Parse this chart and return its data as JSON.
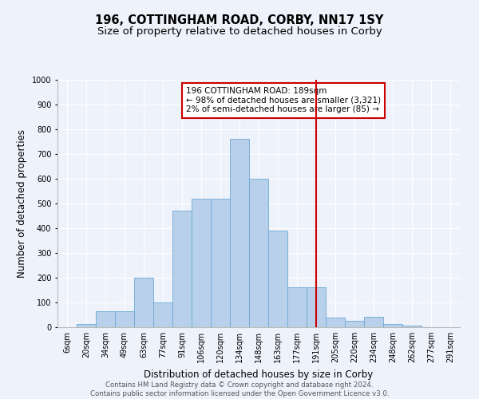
{
  "title": "196, COTTINGHAM ROAD, CORBY, NN17 1SY",
  "subtitle": "Size of property relative to detached houses in Corby",
  "xlabel": "Distribution of detached houses by size in Corby",
  "ylabel": "Number of detached properties",
  "categories": [
    "6sqm",
    "20sqm",
    "34sqm",
    "49sqm",
    "63sqm",
    "77sqm",
    "91sqm",
    "106sqm",
    "120sqm",
    "134sqm",
    "148sqm",
    "163sqm",
    "177sqm",
    "191sqm",
    "205sqm",
    "220sqm",
    "234sqm",
    "248sqm",
    "262sqm",
    "277sqm",
    "291sqm"
  ],
  "values": [
    0,
    13,
    65,
    65,
    200,
    100,
    470,
    520,
    520,
    760,
    600,
    390,
    160,
    160,
    40,
    27,
    43,
    13,
    7,
    0,
    0
  ],
  "bar_color": "#b8d0ea",
  "bar_edge_color": "#6aaad4",
  "background_color": "#eef2fb",
  "grid_color": "#ffffff",
  "vline_idx": 13,
  "vline_color": "#cc0000",
  "annotation_text": "196 COTTINGHAM ROAD: 189sqm\n← 98% of detached houses are smaller (3,321)\n2% of semi-detached houses are larger (85) →",
  "annotation_box_color": "#ffffff",
  "annotation_box_edge": "#cc0000",
  "footer_text": "Contains HM Land Registry data © Crown copyright and database right 2024.\nContains public sector information licensed under the Open Government Licence v3.0.",
  "ylim": [
    0,
    1000
  ],
  "yticks": [
    0,
    100,
    200,
    300,
    400,
    500,
    600,
    700,
    800,
    900,
    1000
  ],
  "title_fontsize": 10.5,
  "subtitle_fontsize": 9.5,
  "xlabel_fontsize": 8.5,
  "ylabel_fontsize": 8.5,
  "tick_fontsize": 7,
  "annotation_fontsize": 7.5,
  "footer_fontsize": 6.2
}
